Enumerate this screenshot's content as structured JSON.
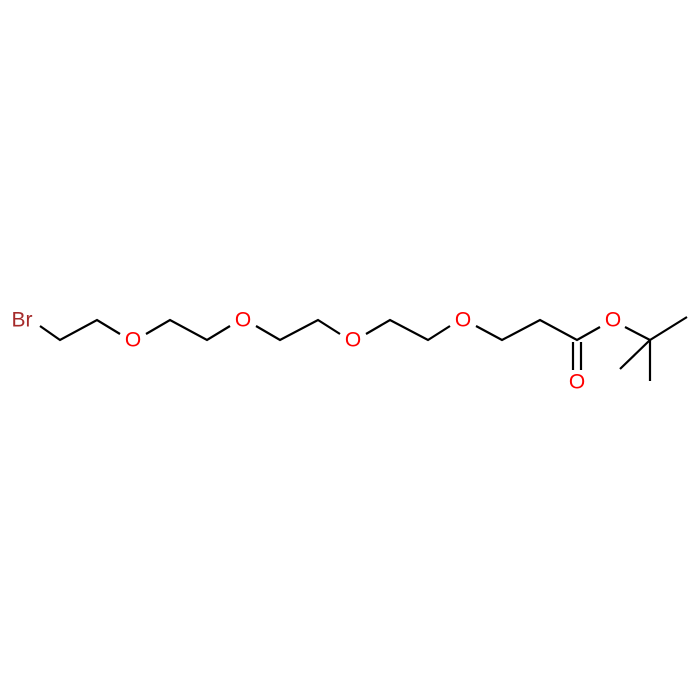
{
  "molecule": {
    "atoms": [
      {
        "id": "Br",
        "label": "Br",
        "color": "#a52a2a"
      },
      {
        "id": "O1",
        "label": "O",
        "color": "#ff0000"
      },
      {
        "id": "O2",
        "label": "O",
        "color": "#ff0000"
      },
      {
        "id": "O3",
        "label": "O",
        "color": "#ff0000"
      },
      {
        "id": "O4",
        "label": "O",
        "color": "#ff0000"
      },
      {
        "id": "O5",
        "label": "O",
        "color": "#ff0000"
      },
      {
        "id": "O6",
        "label": "O",
        "color": "#ff0000"
      }
    ],
    "bond_color": "#000000"
  }
}
